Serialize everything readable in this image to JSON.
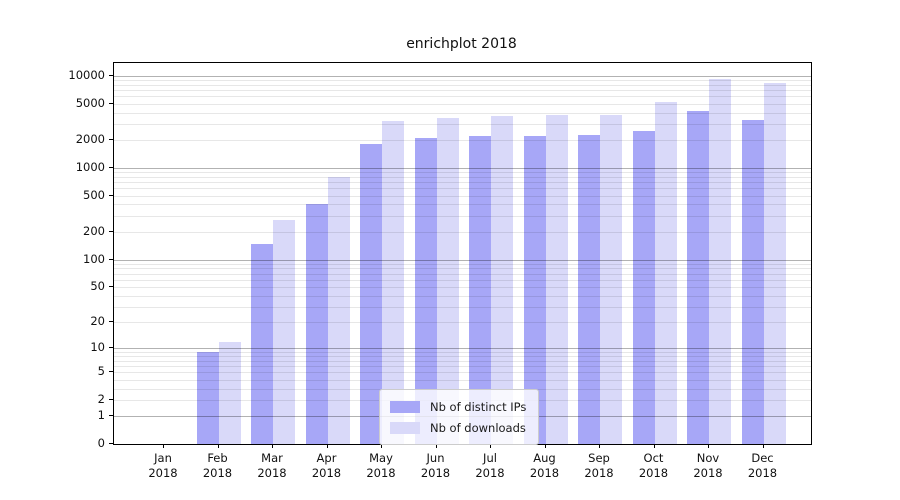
{
  "title": "enrichplot 2018",
  "colors": {
    "ips_bar": "#a7a7f7",
    "downloads_bar": "#d9d9f9",
    "spine": "#000000",
    "major_grid": "#b0b0b0",
    "minor_grid": "#e6e6e6",
    "legend_border": "#cccccc",
    "text": "#111111"
  },
  "chart_data": {
    "type": "bar",
    "title": "enrichplot 2018",
    "scale": "log1p",
    "grid": "on",
    "legend_position": "lower center (inside plot)",
    "categories": [
      "Jan 2018",
      "Feb 2018",
      "Mar 2018",
      "Apr 2018",
      "May 2018",
      "Jun 2018",
      "Jul 2018",
      "Aug 2018",
      "Sep 2018",
      "Oct 2018",
      "Nov 2018",
      "Dec 2018"
    ],
    "month_labels": [
      "Jan",
      "Feb",
      "Mar",
      "Apr",
      "May",
      "Jun",
      "Jul",
      "Aug",
      "Sep",
      "Oct",
      "Nov",
      "Dec"
    ],
    "year_label": "2018",
    "series": [
      {
        "name": "Nb of distinct IPs",
        "color": "#a7a7f7",
        "values": [
          0,
          9,
          150,
          400,
          1800,
          2100,
          2200,
          2200,
          2300,
          2500,
          4200,
          3300
        ]
      },
      {
        "name": "Nb of downloads",
        "color": "#d9d9f9",
        "values": [
          0,
          12,
          270,
          800,
          3200,
          3500,
          3700,
          3800,
          3800,
          5200,
          9200,
          8400
        ]
      }
    ],
    "y_tick_values": [
      0,
      1,
      2,
      5,
      10,
      20,
      50,
      100,
      200,
      500,
      1000,
      2000,
      5000,
      10000
    ],
    "y_tick_labels": [
      "0",
      "1",
      "2",
      "5",
      "10",
      "20",
      "50",
      "100",
      "200",
      "500",
      "1000",
      "2000",
      "5000",
      "10000"
    ],
    "ylim": [
      0,
      13800
    ],
    "xlabel": "",
    "ylabel": ""
  }
}
